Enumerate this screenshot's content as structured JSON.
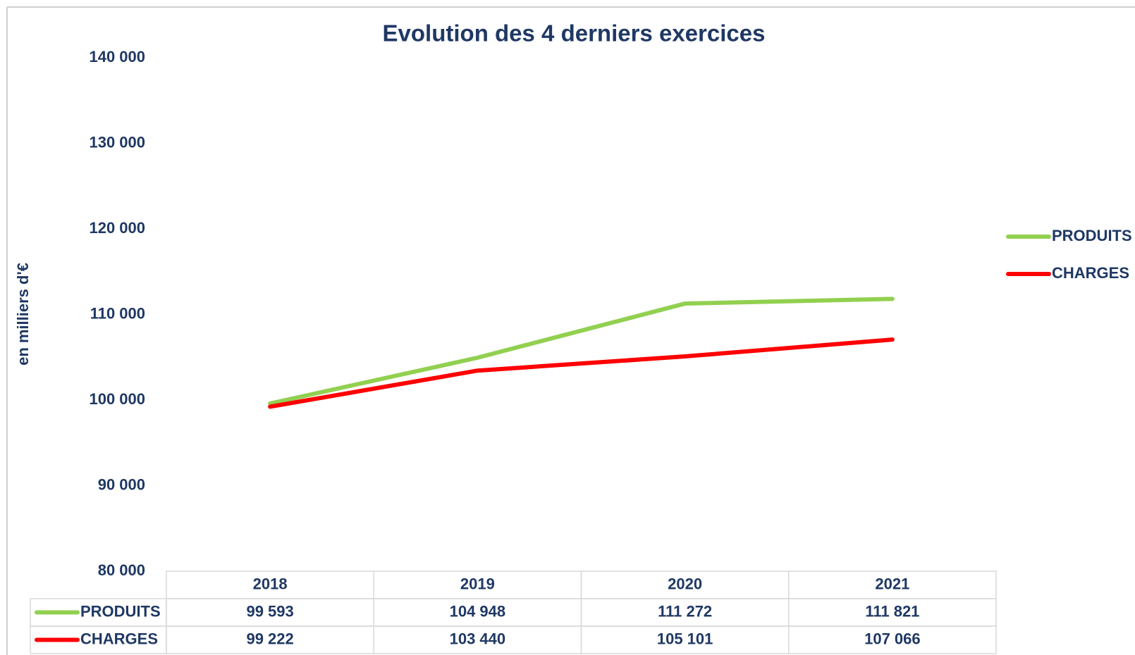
{
  "chart_data": {
    "type": "line",
    "title": "Evolution des 4 derniers exercices",
    "y_label": "en milliers d'€",
    "categories": [
      "2018",
      "2019",
      "2020",
      "2021"
    ],
    "series": [
      {
        "name": "PRODUITS",
        "color": "#92d050",
        "values": [
          99593,
          104948,
          111272,
          111821
        ],
        "value_labels": [
          "99 593",
          "104 948",
          "111 272",
          "111 821"
        ]
      },
      {
        "name": "CHARGES",
        "color": "#ff0000",
        "values": [
          99222,
          103440,
          105101,
          107066
        ],
        "value_labels": [
          "99 222",
          "103 440",
          "105 101",
          "107 066"
        ]
      }
    ],
    "ylim": [
      80000,
      140000
    ],
    "yticks": [
      {
        "value": 80000,
        "label": "80 000"
      },
      {
        "value": 90000,
        "label": "90 000"
      },
      {
        "value": 100000,
        "label": "100 000"
      },
      {
        "value": 110000,
        "label": "110 000"
      },
      {
        "value": 120000,
        "label": "120 000"
      },
      {
        "value": 130000,
        "label": "130 000"
      },
      {
        "value": 140000,
        "label": "140 000"
      }
    ],
    "grid": false,
    "legend": "right",
    "data_table": true
  }
}
